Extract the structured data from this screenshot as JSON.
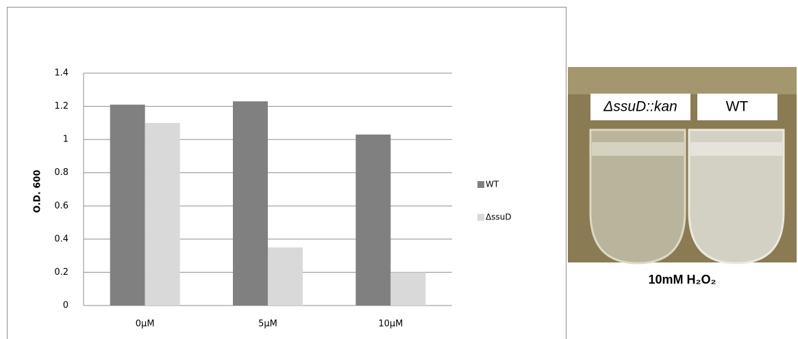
{
  "chart_data": {
    "type": "bar",
    "y_label": "O.D. 600",
    "categories": [
      "0μM",
      "5μM",
      "10μM"
    ],
    "series": [
      {
        "name": "WT",
        "color": "#808080",
        "values": [
          1.21,
          1.23,
          1.03
        ]
      },
      {
        "name": "ΔssuD",
        "color": "#d9d9d9",
        "values": [
          1.1,
          0.35,
          0.2
        ]
      }
    ],
    "ylim": [
      0,
      1.4
    ],
    "yticks": [
      0,
      0.2,
      0.4,
      0.6,
      0.8,
      1,
      1.2,
      1.4
    ],
    "grid": true,
    "legend": "right"
  },
  "photo": {
    "labels": [
      "ΔssuD::kan",
      "WT"
    ],
    "caption": "10mM H₂O₂"
  }
}
